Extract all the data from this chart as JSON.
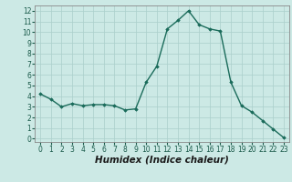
{
  "x": [
    0,
    1,
    2,
    3,
    4,
    5,
    6,
    7,
    8,
    9,
    10,
    11,
    12,
    13,
    14,
    15,
    16,
    17,
    18,
    19,
    20,
    21,
    22,
    23
  ],
  "y": [
    4.2,
    3.7,
    3.0,
    3.3,
    3.1,
    3.2,
    3.2,
    3.1,
    2.7,
    2.8,
    5.3,
    6.8,
    10.3,
    11.1,
    12.0,
    10.7,
    10.3,
    10.1,
    5.3,
    3.1,
    2.5,
    1.7,
    0.9,
    0.1
  ],
  "line_color": "#1a6b5a",
  "marker": "D",
  "marker_size": 1.8,
  "bg_color": "#cce9e5",
  "grid_color": "#aacfcb",
  "xlabel": "Humidex (Indice chaleur)",
  "ylim": [
    -0.3,
    12.5
  ],
  "xlim": [
    -0.5,
    23.5
  ],
  "yticks": [
    0,
    1,
    2,
    3,
    4,
    5,
    6,
    7,
    8,
    9,
    10,
    11,
    12
  ],
  "xticks": [
    0,
    1,
    2,
    3,
    4,
    5,
    6,
    7,
    8,
    9,
    10,
    11,
    12,
    13,
    14,
    15,
    16,
    17,
    18,
    19,
    20,
    21,
    22,
    23
  ],
  "tick_fontsize": 5.5,
  "xlabel_fontsize": 7.5,
  "linewidth": 1.0
}
